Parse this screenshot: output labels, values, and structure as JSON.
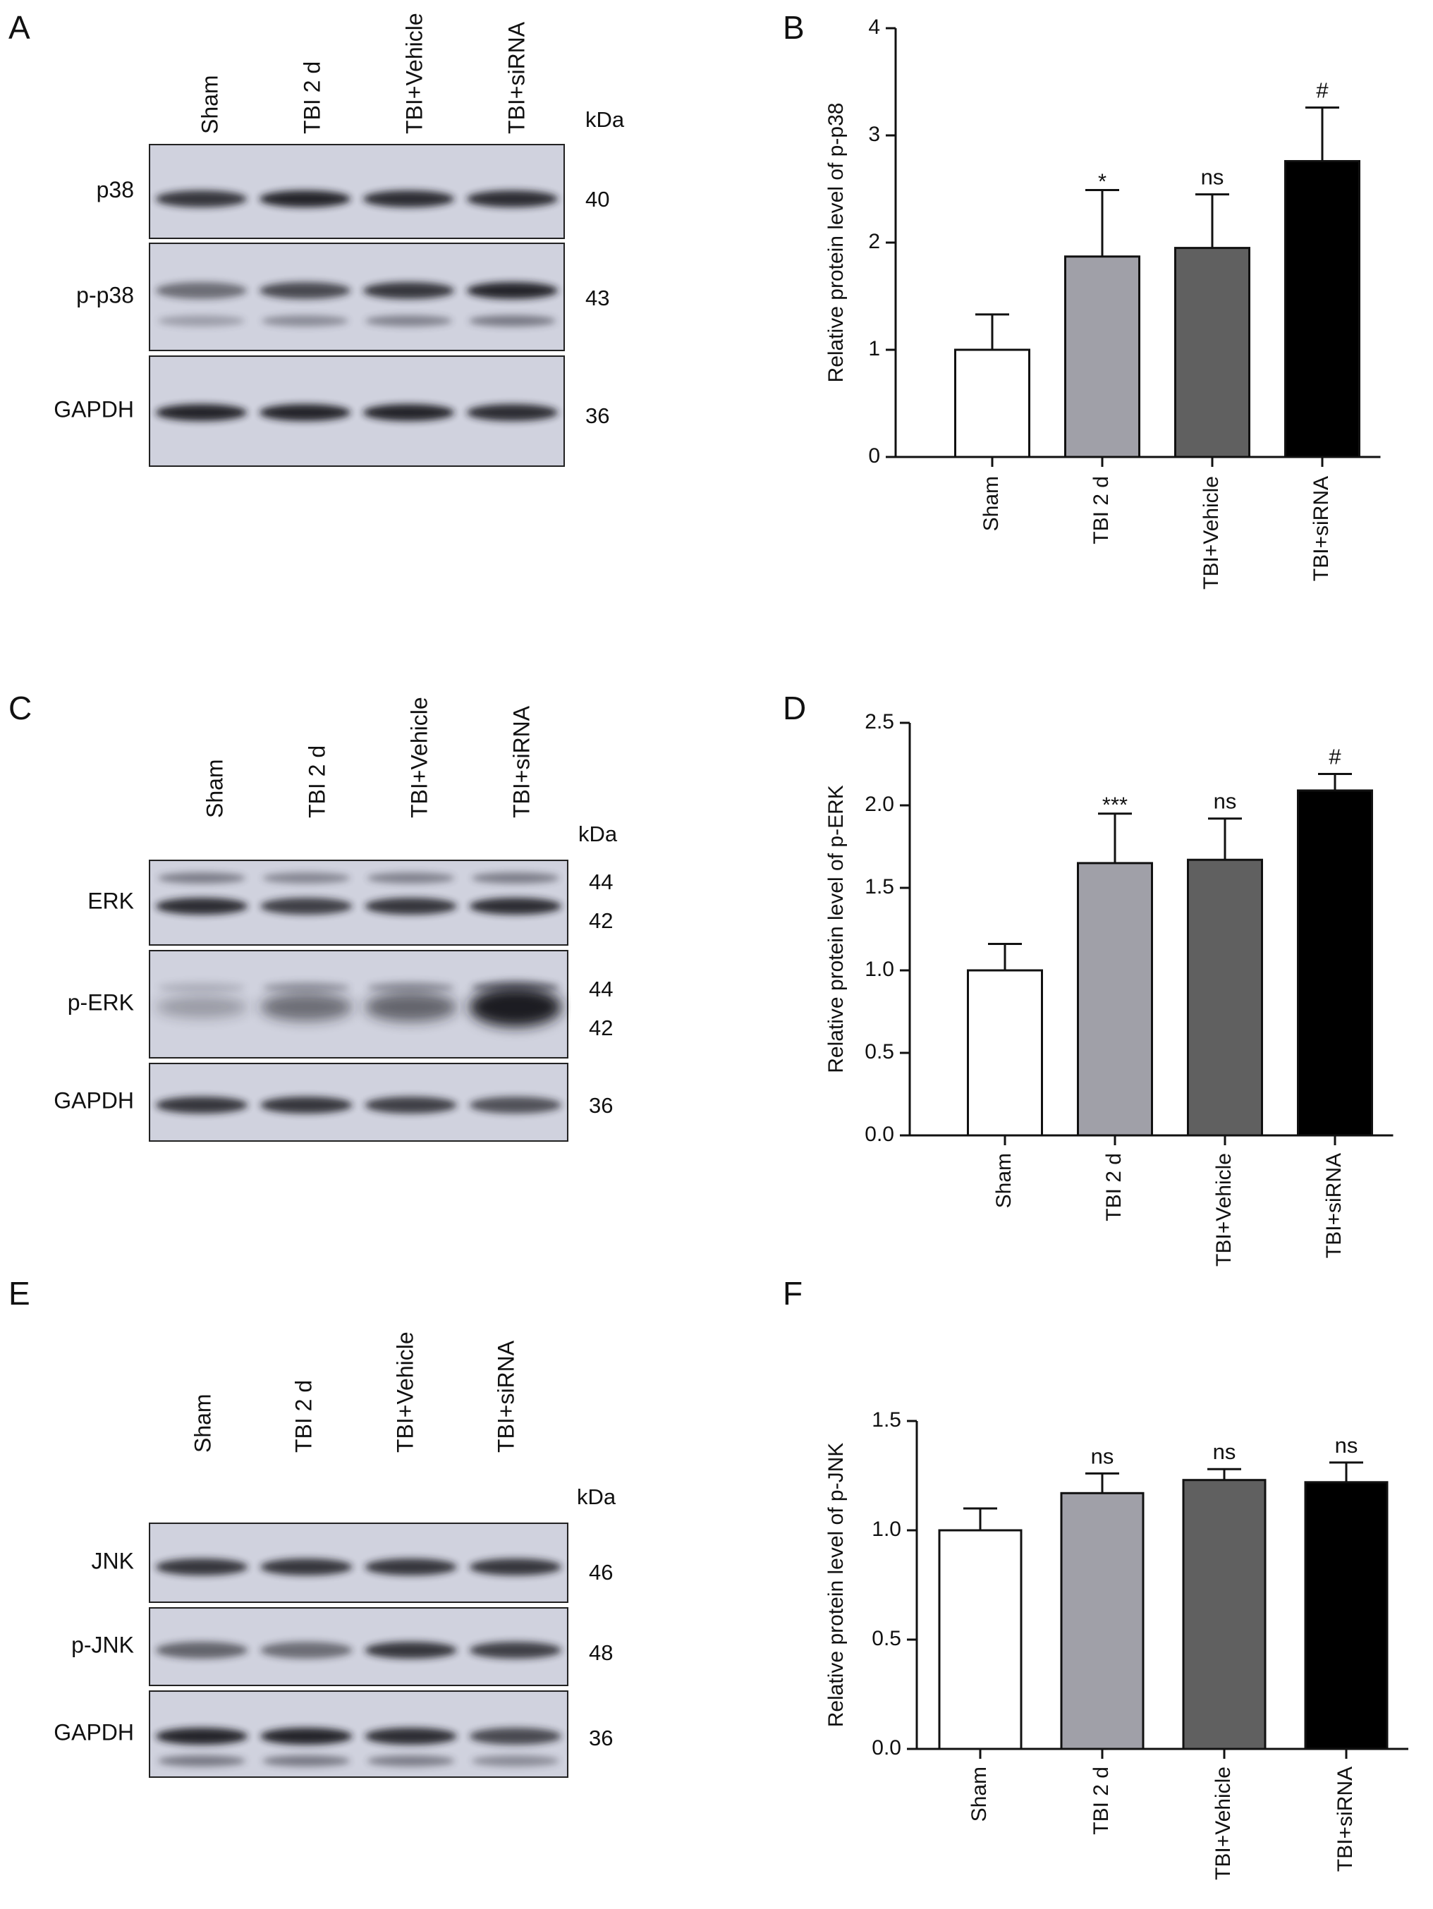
{
  "panels": [
    {
      "letter": "A",
      "kind": "blot",
      "lanes": [
        "Sham",
        "TBI 2 d",
        "TBI+Vehicle",
        "TBI+siRNA"
      ],
      "kda_label": "kDa",
      "rows": [
        {
          "name": "p38",
          "markers": [
            "40"
          ]
        },
        {
          "name": "p-p38",
          "markers": [
            "43"
          ]
        },
        {
          "name": "GAPDH",
          "markers": [
            "36"
          ]
        }
      ]
    },
    {
      "letter": "C",
      "kind": "blot",
      "lanes": [
        "Sham",
        "TBI 2 d",
        "TBI+Vehicle",
        "TBI+siRNA"
      ],
      "kda_label": "kDa",
      "rows": [
        {
          "name": "ERK",
          "markers": [
            "44",
            "42"
          ]
        },
        {
          "name": "p-ERK",
          "markers": [
            "44",
            "42"
          ]
        },
        {
          "name": "GAPDH",
          "markers": [
            "36"
          ]
        }
      ]
    },
    {
      "letter": "E",
      "kind": "blot",
      "lanes": [
        "Sham",
        "TBI 2 d",
        "TBI+Vehicle",
        "TBI+siRNA"
      ],
      "kda_label": "kDa",
      "rows": [
        {
          "name": "JNK",
          "markers": [
            "46"
          ]
        },
        {
          "name": "p-JNK",
          "markers": [
            "48"
          ]
        },
        {
          "name": "GAPDH",
          "markers": [
            "36"
          ]
        }
      ]
    }
  ],
  "chart_data": [
    {
      "letter": "B",
      "type": "bar",
      "categories": [
        "Sham",
        "TBI 2 d",
        "TBI+Vehicle",
        "TBI+siRNA"
      ],
      "values": [
        1.0,
        1.87,
        1.95,
        2.76
      ],
      "errors": [
        0.33,
        0.62,
        0.5,
        0.5
      ],
      "annotations": [
        "",
        "*",
        "ns",
        "#"
      ],
      "ylabel": "Relative protein level of p-p38",
      "ylim": [
        0,
        4
      ],
      "yticks": [
        "0",
        "1",
        "2",
        "3",
        "4"
      ],
      "bar_colors": [
        "#ffffff",
        "#a0a0a8",
        "#606060",
        "#000000"
      ]
    },
    {
      "letter": "D",
      "type": "bar",
      "categories": [
        "Sham",
        "TBI 2 d",
        "TBI+Vehicle",
        "TBI+siRNA"
      ],
      "values": [
        1.0,
        1.65,
        1.67,
        2.09
      ],
      "errors": [
        0.16,
        0.3,
        0.25,
        0.1
      ],
      "annotations": [
        "",
        "***",
        "ns",
        "#"
      ],
      "ylabel": "Relative protein level of p-ERK",
      "ylim": [
        0,
        2.5
      ],
      "yticks": [
        "0.0",
        "0.5",
        "1.0",
        "1.5",
        "2.0",
        "2.5"
      ],
      "bar_colors": [
        "#ffffff",
        "#a0a0a8",
        "#606060",
        "#000000"
      ]
    },
    {
      "letter": "F",
      "type": "bar",
      "categories": [
        "Sham",
        "TBI 2 d",
        "TBI+Vehicle",
        "TBI+siRNA"
      ],
      "values": [
        1.0,
        1.17,
        1.23,
        1.22
      ],
      "errors": [
        0.1,
        0.09,
        0.05,
        0.09
      ],
      "annotations": [
        "",
        "ns",
        "ns",
        "ns"
      ],
      "ylabel": "Relative protein level of p-JNK",
      "ylim": [
        0,
        1.5
      ],
      "yticks": [
        "0.0",
        "0.5",
        "1.0",
        "1.5"
      ],
      "bar_colors": [
        "#ffffff",
        "#a0a0a8",
        "#606060",
        "#000000"
      ]
    }
  ]
}
